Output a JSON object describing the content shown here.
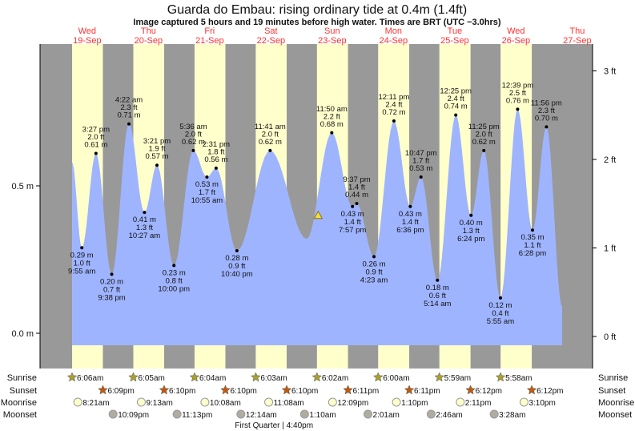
{
  "chart_data": {
    "type": "area",
    "title": "Guarda do Embau: rising  ordinary tide at 0.4m (1.4ft)",
    "subtitle": "Image captured 5 hours and 19 minutes before high water. Times are BRT (UTC −3.0hrs)",
    "colors": {
      "day": "#ffffcc",
      "night": "#999999",
      "water": "#9fb4ff",
      "date": "#ff3030",
      "sunrise": "#a8a030",
      "sunset": "#c05a10",
      "moonrise": "#ffffcc",
      "moonset": "#b0aca0"
    },
    "days": [
      {
        "dow": "Wed",
        "date": "19-Sep"
      },
      {
        "dow": "Thu",
        "date": "20-Sep"
      },
      {
        "dow": "Fri",
        "date": "21-Sep"
      },
      {
        "dow": "Sat",
        "date": "22-Sep"
      },
      {
        "dow": "Sun",
        "date": "23-Sep"
      },
      {
        "dow": "Mon",
        "date": "24-Sep"
      },
      {
        "dow": "Tue",
        "date": "25-Sep"
      },
      {
        "dow": "Wed",
        "date": "26-Sep"
      },
      {
        "dow": "Thu",
        "date": "27-Sep"
      }
    ],
    "y_axis_left": {
      "ticks": [
        {
          "v": 0.5,
          "label": "0.5 m"
        },
        {
          "v": 0.0,
          "label": "0.0 m"
        }
      ],
      "range_m": [
        -0.1,
        1.0
      ]
    },
    "y_axis_right": {
      "ticks": [
        {
          "v": 3,
          "label": "3 ft"
        },
        {
          "v": 2,
          "label": "2 ft"
        },
        {
          "v": 1,
          "label": "1 ft"
        },
        {
          "v": 0,
          "label": "0 ft"
        }
      ]
    },
    "curve_start": {
      "day": "19-Sep",
      "time": "6:06 am",
      "m": 0.58
    },
    "curve_end": {
      "day": "27-Sep",
      "time": "6:06 am",
      "m": 0.09
    },
    "extrema": [
      {
        "day": "19-Sep",
        "time": "9:55 am",
        "m": 0.29,
        "ft": "1.0 ft",
        "type": "low"
      },
      {
        "day": "19-Sep",
        "time": "3:27 pm",
        "m": 0.61,
        "ft": "2.0 ft",
        "type": "high"
      },
      {
        "day": "19-Sep",
        "time": "9:38 pm",
        "m": 0.2,
        "ft": "0.7 ft",
        "type": "low"
      },
      {
        "day": "20-Sep",
        "time": "4:22 am",
        "m": 0.71,
        "ft": "2.3 ft",
        "type": "high"
      },
      {
        "day": "20-Sep",
        "time": "10:27 am",
        "m": 0.41,
        "ft": "1.3 ft",
        "type": "low"
      },
      {
        "day": "20-Sep",
        "time": "3:21 pm",
        "m": 0.57,
        "ft": "1.9 ft",
        "type": "high"
      },
      {
        "day": "20-Sep",
        "time": "10:00 pm",
        "m": 0.23,
        "ft": "0.8 ft",
        "type": "low"
      },
      {
        "day": "21-Sep",
        "time": "5:36 am",
        "m": 0.62,
        "ft": "2.0 ft",
        "type": "high"
      },
      {
        "day": "21-Sep",
        "time": "10:55 am",
        "m": 0.53,
        "ft": "1.7 ft",
        "type": "low"
      },
      {
        "day": "21-Sep",
        "time": "2:31 pm",
        "m": 0.56,
        "ft": "1.8 ft",
        "type": "high"
      },
      {
        "day": "21-Sep",
        "time": "10:40 pm",
        "m": 0.28,
        "ft": "0.9 ft",
        "type": "low"
      },
      {
        "day": "22-Sep",
        "time": "11:41 am",
        "m": 0.62,
        "ft": "2.0 ft",
        "type": "high"
      },
      {
        "day": "23-Sep",
        "time": "2:00 am",
        "m": 0.32,
        "ft": "",
        "type": "low",
        "unlabeled": true
      },
      {
        "day": "23-Sep",
        "time": "11:50 am",
        "m": 0.68,
        "ft": "2.2 ft",
        "type": "high"
      },
      {
        "day": "23-Sep",
        "time": "7:57 pm",
        "m": 0.43,
        "ft": "1.4 ft",
        "type": "low"
      },
      {
        "day": "23-Sep",
        "time": "9:37 pm",
        "m": 0.44,
        "ft": "1.4 ft",
        "type": "high"
      },
      {
        "day": "24-Sep",
        "time": "4:23 am",
        "m": 0.26,
        "ft": "0.9 ft",
        "type": "low"
      },
      {
        "day": "24-Sep",
        "time": "12:11 pm",
        "m": 0.72,
        "ft": "2.4 ft",
        "type": "high"
      },
      {
        "day": "24-Sep",
        "time": "6:36 pm",
        "m": 0.43,
        "ft": "1.4 ft",
        "type": "low"
      },
      {
        "day": "24-Sep",
        "time": "10:47 pm",
        "m": 0.53,
        "ft": "1.7 ft",
        "type": "high"
      },
      {
        "day": "25-Sep",
        "time": "5:14 am",
        "m": 0.18,
        "ft": "0.6 ft",
        "type": "low"
      },
      {
        "day": "25-Sep",
        "time": "12:25 pm",
        "m": 0.74,
        "ft": "2.4 ft",
        "type": "high"
      },
      {
        "day": "25-Sep",
        "time": "6:24 pm",
        "m": 0.4,
        "ft": "1.3 ft",
        "type": "low"
      },
      {
        "day": "25-Sep",
        "time": "11:25 pm",
        "m": 0.62,
        "ft": "2.0 ft",
        "type": "high"
      },
      {
        "day": "26-Sep",
        "time": "5:55 am",
        "m": 0.12,
        "ft": "0.4 ft",
        "type": "low"
      },
      {
        "day": "26-Sep",
        "time": "12:39 pm",
        "m": 0.76,
        "ft": "2.5 ft",
        "type": "high"
      },
      {
        "day": "26-Sep",
        "time": "6:28 pm",
        "m": 0.35,
        "ft": "1.1 ft",
        "type": "low"
      },
      {
        "day": "26-Sep",
        "time": "11:56 pm",
        "m": 0.7,
        "ft": "2.3 ft",
        "type": "high"
      }
    ],
    "current": {
      "day": "23-Sep",
      "time": "6:30 am",
      "m": 0.4
    },
    "almanac": {
      "labels": {
        "sunrise": "Sunrise",
        "sunset": "Sunset",
        "moonrise": "Moonrise",
        "moonset": "Moonset"
      },
      "sunrise": [
        {
          "day": "19-Sep",
          "time": "6:06am"
        },
        {
          "day": "20-Sep",
          "time": "6:05am"
        },
        {
          "day": "21-Sep",
          "time": "6:04am"
        },
        {
          "day": "22-Sep",
          "time": "6:03am"
        },
        {
          "day": "23-Sep",
          "time": "6:02am"
        },
        {
          "day": "24-Sep",
          "time": "6:00am"
        },
        {
          "day": "25-Sep",
          "time": "5:59am"
        },
        {
          "day": "26-Sep",
          "time": "5:58am"
        }
      ],
      "sunset": [
        {
          "day": "19-Sep",
          "time": "6:09pm"
        },
        {
          "day": "20-Sep",
          "time": "6:10pm"
        },
        {
          "day": "21-Sep",
          "time": "6:10pm"
        },
        {
          "day": "22-Sep",
          "time": "6:10pm"
        },
        {
          "day": "23-Sep",
          "time": "6:11pm"
        },
        {
          "day": "24-Sep",
          "time": "6:11pm"
        },
        {
          "day": "25-Sep",
          "time": "6:12pm"
        },
        {
          "day": "26-Sep",
          "time": "6:12pm"
        }
      ],
      "moonrise": [
        {
          "day": "19-Sep",
          "time": "8:21am"
        },
        {
          "day": "20-Sep",
          "time": "9:13am"
        },
        {
          "day": "21-Sep",
          "time": "10:08am"
        },
        {
          "day": "22-Sep",
          "time": "11:08am"
        },
        {
          "day": "23-Sep",
          "time": "12:09pm"
        },
        {
          "day": "24-Sep",
          "time": "1:10pm"
        },
        {
          "day": "25-Sep",
          "time": "2:11pm"
        },
        {
          "day": "26-Sep",
          "time": "3:10pm"
        }
      ],
      "moonset": [
        {
          "day": "19-Sep",
          "time": "10:09pm"
        },
        {
          "day": "20-Sep",
          "time": "11:13pm"
        },
        {
          "day": "22-Sep",
          "time": "12:14am"
        },
        {
          "day": "23-Sep",
          "time": "1:10am"
        },
        {
          "day": "24-Sep",
          "time": "2:01am"
        },
        {
          "day": "25-Sep",
          "time": "2:46am"
        },
        {
          "day": "26-Sep",
          "time": "3:28am"
        }
      ],
      "phase": {
        "day": "22-Sep",
        "time": "4:40pm",
        "label": "First Quarter | 4:40pm"
      }
    }
  }
}
